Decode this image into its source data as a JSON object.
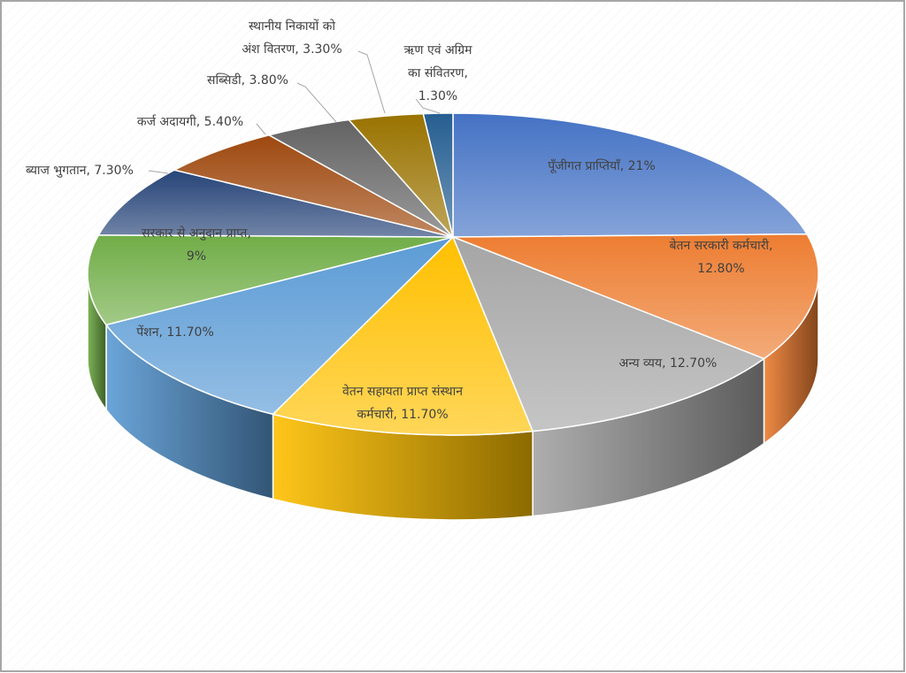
{
  "chart_data": {
    "type": "pie3d",
    "values": [
      21,
      12.8,
      12.7,
      11.7,
      11.7,
      9,
      7.3,
      5.4,
      3.8,
      3.3,
      1.3
    ],
    "value_labels": [
      [
        "पूँजीगत प्राप्तियाँ, 21%"
      ],
      [
        "बेतन सरकारी कर्मचारी,",
        "12.80%"
      ],
      [
        "अन्य व्यय, 12.70%"
      ],
      [
        "वेतन सहायता प्राप्त संस्थान",
        "कर्मचारी, 11.70%"
      ],
      [
        "पेंशन, 11.70%"
      ],
      [
        "सरकार से अनुदान प्राप्त,",
        "9%"
      ],
      [
        "ब्याज भुगतान, 7.30%"
      ],
      [
        "कर्ज अदायगी, 5.40%"
      ],
      [
        "सब्सिडी, 3.80%"
      ],
      [
        "स्थानीय निकायों को",
        "अंश वितरण, 3.30%"
      ],
      [
        "ऋण एवं अग्रिम",
        "का संवितरण,",
        "1.30%"
      ]
    ],
    "colors": [
      "#4472c4",
      "#ed7d31",
      "#a5a5a5",
      "#ffc000",
      "#5b9bd5",
      "#70ad47",
      "#264478",
      "#9e480e",
      "#636363",
      "#997300",
      "#255e91"
    ]
  }
}
